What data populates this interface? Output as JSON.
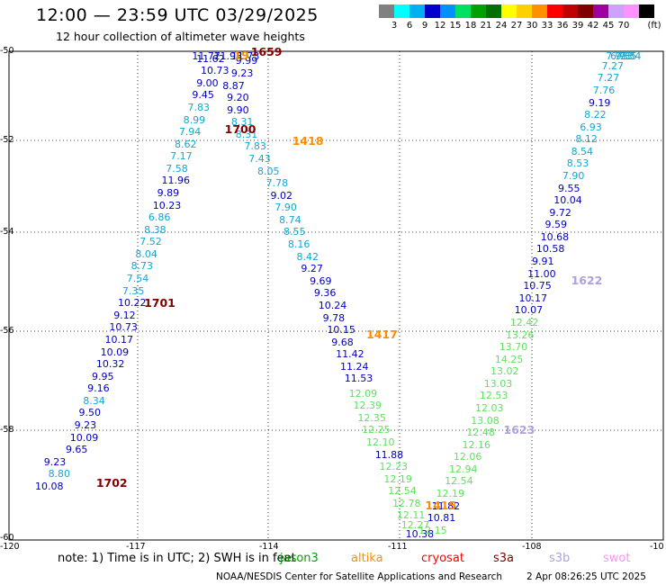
{
  "header": {
    "title": "12:00 — 23:59 UTC 03/29/2025",
    "subtitle": "12 hour collection of altimeter wave heights"
  },
  "legend": {
    "unit": "(ft)",
    "bins": [
      {
        "color": "#808080",
        "label": ""
      },
      {
        "color": "#00ffff",
        "label": "3"
      },
      {
        "color": "#00b0f0",
        "label": "6"
      },
      {
        "color": "#0000cd",
        "label": "9"
      },
      {
        "color": "#0090ff",
        "label": "12"
      },
      {
        "color": "#00e060",
        "label": "15"
      },
      {
        "color": "#00a000",
        "label": "18"
      },
      {
        "color": "#007000",
        "label": "21"
      },
      {
        "color": "#ffff00",
        "label": "24"
      },
      {
        "color": "#ffd000",
        "label": "27"
      },
      {
        "color": "#ff9000",
        "label": "30"
      },
      {
        "color": "#ff0000",
        "label": "33"
      },
      {
        "color": "#c00000",
        "label": "36"
      },
      {
        "color": "#800000",
        "label": "39"
      },
      {
        "color": "#a000a0",
        "label": "42"
      },
      {
        "color": "#d0a0ff",
        "label": "45"
      },
      {
        "color": "#ff90ff",
        "label": "70"
      },
      {
        "color": "#000000",
        "label": ""
      }
    ]
  },
  "axes": {
    "lon_ticks": [
      "-120",
      "-117",
      "-114",
      "-111",
      "-108",
      "-10"
    ],
    "lat_ticks": [
      "-50",
      "-52",
      "-54",
      "-56",
      "-58",
      "-60"
    ]
  },
  "colors": {
    "blue": "#0000c0",
    "cyan": "#10a8d0",
    "green": "#60e060",
    "maroon": "#800000",
    "orange": "#ff8c00",
    "lavender": "#b0a0e0"
  },
  "track_labels": [
    {
      "lon": -119.4,
      "lat": -58.8,
      "text": "10.08",
      "c": "blue"
    },
    {
      "lon": -119.1,
      "lat": -58.55,
      "text": "8.80",
      "c": "cyan"
    },
    {
      "lon": -119.2,
      "lat": -58.3,
      "text": "9.23",
      "c": "blue"
    },
    {
      "lon": -118.7,
      "lat": -58.05,
      "text": "9.65",
      "c": "blue"
    },
    {
      "lon": -118.6,
      "lat": -57.8,
      "text": "10.09",
      "c": "blue"
    },
    {
      "lon": -118.5,
      "lat": -57.55,
      "text": "9.23",
      "c": "blue"
    },
    {
      "lon": -118.4,
      "lat": -57.3,
      "text": "9.50",
      "c": "blue"
    },
    {
      "lon": -118.3,
      "lat": -57.05,
      "text": "8.34",
      "c": "cyan"
    },
    {
      "lon": -118.2,
      "lat": -56.8,
      "text": "9.16",
      "c": "blue"
    },
    {
      "lon": -118.1,
      "lat": -56.55,
      "text": "9.95",
      "c": "blue"
    },
    {
      "lon": -118.0,
      "lat": -56.3,
      "text": "10.32",
      "c": "blue"
    },
    {
      "lon": -117.9,
      "lat": -56.05,
      "text": "10.09",
      "c": "blue"
    },
    {
      "lon": -117.8,
      "lat": -55.8,
      "text": "10.17",
      "c": "blue"
    },
    {
      "lon": -117.7,
      "lat": -55.55,
      "text": "10.73",
      "c": "blue"
    },
    {
      "lon": -117.6,
      "lat": -55.3,
      "text": "9.12",
      "c": "blue"
    },
    {
      "lon": -117.5,
      "lat": -55.05,
      "text": "10.22",
      "c": "blue"
    },
    {
      "lon": -117.4,
      "lat": -54.8,
      "text": "7.35",
      "c": "cyan"
    },
    {
      "lon": -117.3,
      "lat": -54.55,
      "text": "7.54",
      "c": "cyan"
    },
    {
      "lon": -117.2,
      "lat": -54.3,
      "text": "8.73",
      "c": "cyan"
    },
    {
      "lon": -117.1,
      "lat": -54.05,
      "text": "8.04",
      "c": "cyan"
    },
    {
      "lon": -117.0,
      "lat": -53.8,
      "text": "7.52",
      "c": "cyan"
    },
    {
      "lon": -116.9,
      "lat": -53.55,
      "text": "8.38",
      "c": "cyan"
    },
    {
      "lon": -116.8,
      "lat": -53.3,
      "text": "6.86",
      "c": "cyan"
    },
    {
      "lon": -116.7,
      "lat": -53.05,
      "text": "10.23",
      "c": "blue"
    },
    {
      "lon": -116.6,
      "lat": -52.8,
      "text": "9.89",
      "c": "blue"
    },
    {
      "lon": -116.5,
      "lat": -52.55,
      "text": "11.96",
      "c": "blue"
    },
    {
      "lon": -116.4,
      "lat": -52.3,
      "text": "7.58",
      "c": "cyan"
    },
    {
      "lon": -116.3,
      "lat": -52.05,
      "text": "7.17",
      "c": "cyan"
    },
    {
      "lon": -116.2,
      "lat": -51.8,
      "text": "8.62",
      "c": "cyan"
    },
    {
      "lon": -116.1,
      "lat": -51.55,
      "text": "7.94",
      "c": "cyan"
    },
    {
      "lon": -116.0,
      "lat": -51.3,
      "text": "8.99",
      "c": "cyan"
    },
    {
      "lon": -115.9,
      "lat": -51.05,
      "text": "7.83",
      "c": "cyan"
    },
    {
      "lon": -115.8,
      "lat": -50.8,
      "text": "9.45",
      "c": "blue"
    },
    {
      "lon": -115.7,
      "lat": -50.55,
      "text": "9.00",
      "c": "blue"
    },
    {
      "lon": -115.6,
      "lat": -50.3,
      "text": "10.73",
      "c": "blue"
    },
    {
      "lon": -115.7,
      "lat": -50.05,
      "text": "11.62",
      "c": "blue"
    },
    {
      "lon": -115.8,
      "lat": -49.8,
      "text": "11.77",
      "c": "blue"
    },
    {
      "lon": -115.3,
      "lat": -49.6,
      "text": "11.98",
      "c": "blue"
    },
    {
      "lon": -114.9,
      "lat": -49.85,
      "text": "11.73",
      "c": "blue"
    },
    {
      "lon": -114.8,
      "lat": -50.1,
      "text": "9.99",
      "c": "blue"
    },
    {
      "lon": -114.9,
      "lat": -50.35,
      "text": "9.23",
      "c": "blue"
    },
    {
      "lon": -115.1,
      "lat": -50.6,
      "text": "8.87",
      "c": "blue"
    },
    {
      "lon": -115.0,
      "lat": -50.85,
      "text": "9.20",
      "c": "blue"
    },
    {
      "lon": -115.0,
      "lat": -51.1,
      "text": "9.90",
      "c": "blue"
    },
    {
      "lon": -114.9,
      "lat": -51.35,
      "text": "8.31",
      "c": "cyan"
    },
    {
      "lon": -114.8,
      "lat": -51.6,
      "text": "8.31",
      "c": "cyan"
    },
    {
      "lon": -114.6,
      "lat": -51.85,
      "text": "7.83",
      "c": "cyan"
    },
    {
      "lon": -114.5,
      "lat": -52.1,
      "text": "7.43",
      "c": "cyan"
    },
    {
      "lon": -114.3,
      "lat": -52.35,
      "text": "8.05",
      "c": "cyan"
    },
    {
      "lon": -114.1,
      "lat": -52.6,
      "text": "7.78",
      "c": "cyan"
    },
    {
      "lon": -114.0,
      "lat": -52.85,
      "text": "9.02",
      "c": "blue"
    },
    {
      "lon": -113.9,
      "lat": -53.1,
      "text": "7.90",
      "c": "cyan"
    },
    {
      "lon": -113.8,
      "lat": -53.35,
      "text": "8.74",
      "c": "cyan"
    },
    {
      "lon": -113.7,
      "lat": -53.6,
      "text": "8.55",
      "c": "cyan"
    },
    {
      "lon": -113.6,
      "lat": -53.85,
      "text": "8.16",
      "c": "cyan"
    },
    {
      "lon": -113.4,
      "lat": -54.1,
      "text": "8.42",
      "c": "cyan"
    },
    {
      "lon": -113.3,
      "lat": -54.35,
      "text": "9.27",
      "c": "blue"
    },
    {
      "lon": -113.1,
      "lat": -54.6,
      "text": "9.69",
      "c": "blue"
    },
    {
      "lon": -113.0,
      "lat": -54.85,
      "text": "9.36",
      "c": "blue"
    },
    {
      "lon": -112.9,
      "lat": -55.1,
      "text": "10.24",
      "c": "blue"
    },
    {
      "lon": -112.8,
      "lat": -55.35,
      "text": "9.78",
      "c": "blue"
    },
    {
      "lon": -112.7,
      "lat": -55.6,
      "text": "10.15",
      "c": "blue"
    },
    {
      "lon": -112.6,
      "lat": -55.85,
      "text": "9.68",
      "c": "blue"
    },
    {
      "lon": -112.5,
      "lat": -56.1,
      "text": "11.42",
      "c": "blue"
    },
    {
      "lon": -112.4,
      "lat": -56.35,
      "text": "11.24",
      "c": "blue"
    },
    {
      "lon": -112.3,
      "lat": -56.6,
      "text": "11.53",
      "c": "blue"
    },
    {
      "lon": -112.2,
      "lat": -56.9,
      "text": "12.09",
      "c": "green"
    },
    {
      "lon": -112.1,
      "lat": -57.15,
      "text": "12.39",
      "c": "green"
    },
    {
      "lon": -112.0,
      "lat": -57.4,
      "text": "12.35",
      "c": "green"
    },
    {
      "lon": -111.9,
      "lat": -57.65,
      "text": "12.25",
      "c": "green"
    },
    {
      "lon": -111.8,
      "lat": -57.9,
      "text": "12.10",
      "c": "green"
    },
    {
      "lon": -111.6,
      "lat": -58.15,
      "text": "11.88",
      "c": "blue"
    },
    {
      "lon": -111.5,
      "lat": -58.4,
      "text": "12.23",
      "c": "green"
    },
    {
      "lon": -111.4,
      "lat": -58.65,
      "text": "12.19",
      "c": "green"
    },
    {
      "lon": -111.3,
      "lat": -58.9,
      "text": "12.54",
      "c": "green"
    },
    {
      "lon": -111.2,
      "lat": -59.15,
      "text": "12.78",
      "c": "green"
    },
    {
      "lon": -111.1,
      "lat": -59.4,
      "text": "12.11",
      "c": "green"
    },
    {
      "lon": -111.0,
      "lat": -59.6,
      "text": "12.27",
      "c": "green"
    },
    {
      "lon": -110.9,
      "lat": -59.85,
      "text": "10.38",
      "c": "blue"
    },
    {
      "lon": -110.6,
      "lat": -59.7,
      "text": "12.15",
      "c": "green"
    },
    {
      "lon": -110.4,
      "lat": -59.45,
      "text": "10.81",
      "c": "blue"
    },
    {
      "lon": -110.3,
      "lat": -59.2,
      "text": "11.82",
      "c": "blue"
    },
    {
      "lon": -110.2,
      "lat": -58.95,
      "text": "12.19",
      "c": "green"
    },
    {
      "lon": -110.0,
      "lat": -58.7,
      "text": "12.54",
      "c": "green"
    },
    {
      "lon": -109.9,
      "lat": -58.45,
      "text": "12.94",
      "c": "green"
    },
    {
      "lon": -109.8,
      "lat": -58.2,
      "text": "12.06",
      "c": "green"
    },
    {
      "lon": -109.6,
      "lat": -57.95,
      "text": "12.16",
      "c": "green"
    },
    {
      "lon": -109.5,
      "lat": -57.7,
      "text": "12.48",
      "c": "green"
    },
    {
      "lon": -109.4,
      "lat": -57.45,
      "text": "13.08",
      "c": "green"
    },
    {
      "lon": -109.3,
      "lat": -57.2,
      "text": "12.03",
      "c": "green"
    },
    {
      "lon": -109.2,
      "lat": -56.95,
      "text": "12.53",
      "c": "green"
    },
    {
      "lon": -109.1,
      "lat": -56.7,
      "text": "13.03",
      "c": "green"
    },
    {
      "lon": -108.95,
      "lat": -56.45,
      "text": "13.02",
      "c": "green"
    },
    {
      "lon": -108.85,
      "lat": -56.2,
      "text": "14.25",
      "c": "green"
    },
    {
      "lon": -108.75,
      "lat": -55.95,
      "text": "13.70",
      "c": "green"
    },
    {
      "lon": -108.6,
      "lat": -55.7,
      "text": "13.26",
      "c": "green"
    },
    {
      "lon": -108.5,
      "lat": -55.45,
      "text": "12.42",
      "c": "green"
    },
    {
      "lon": -108.4,
      "lat": -55.2,
      "text": "10.07",
      "c": "blue"
    },
    {
      "lon": -108.3,
      "lat": -54.95,
      "text": "10.17",
      "c": "blue"
    },
    {
      "lon": -108.2,
      "lat": -54.7,
      "text": "10.75",
      "c": "blue"
    },
    {
      "lon": -108.1,
      "lat": -54.45,
      "text": "11.00",
      "c": "blue"
    },
    {
      "lon": -108.0,
      "lat": -54.2,
      "text": "9.91",
      "c": "blue"
    },
    {
      "lon": -107.9,
      "lat": -53.95,
      "text": "10.58",
      "c": "blue"
    },
    {
      "lon": -107.8,
      "lat": -53.7,
      "text": "10.68",
      "c": "blue"
    },
    {
      "lon": -107.7,
      "lat": -53.45,
      "text": "9.59",
      "c": "blue"
    },
    {
      "lon": -107.6,
      "lat": -53.2,
      "text": "9.72",
      "c": "blue"
    },
    {
      "lon": -107.5,
      "lat": -52.95,
      "text": "10.04",
      "c": "blue"
    },
    {
      "lon": -107.4,
      "lat": -52.7,
      "text": "9.55",
      "c": "blue"
    },
    {
      "lon": -107.3,
      "lat": -52.45,
      "text": "7.90",
      "c": "cyan"
    },
    {
      "lon": -107.2,
      "lat": -52.2,
      "text": "8.53",
      "c": "cyan"
    },
    {
      "lon": -107.1,
      "lat": -51.95,
      "text": "8.54",
      "c": "cyan"
    },
    {
      "lon": -107.0,
      "lat": -51.7,
      "text": "8.12",
      "c": "cyan"
    },
    {
      "lon": -106.9,
      "lat": -51.45,
      "text": "6.93",
      "c": "cyan"
    },
    {
      "lon": -106.8,
      "lat": -51.2,
      "text": "8.22",
      "c": "cyan"
    },
    {
      "lon": -106.7,
      "lat": -50.95,
      "text": "9.19",
      "c": "blue"
    },
    {
      "lon": -106.6,
      "lat": -50.7,
      "text": "7.76",
      "c": "cyan"
    },
    {
      "lon": -106.5,
      "lat": -50.45,
      "text": "7.27",
      "c": "cyan"
    },
    {
      "lon": -106.4,
      "lat": -50.2,
      "text": "7.27",
      "c": "cyan"
    },
    {
      "lon": -106.3,
      "lat": -49.95,
      "text": "7.93",
      "c": "cyan"
    },
    {
      "lon": -106.2,
      "lat": -49.7,
      "text": "6.93",
      "c": "cyan"
    },
    {
      "lon": -106.1,
      "lat": -49.45,
      "text": "7.35",
      "c": "cyan"
    },
    {
      "lon": -106.0,
      "lat": -49.2,
      "text": "7.34",
      "c": "cyan"
    }
  ],
  "time_labels": [
    {
      "lon": -118.0,
      "lat": -58.7,
      "text": "1702",
      "c": "maroon"
    },
    {
      "lon": -116.9,
      "lat": -55.0,
      "text": "1701",
      "c": "maroon"
    },
    {
      "lon": -115.05,
      "lat": -51.45,
      "text": "1700",
      "c": "maroon"
    },
    {
      "lon": -114.45,
      "lat": -49.85,
      "text": "1659",
      "c": "maroon"
    },
    {
      "lon": -114.85,
      "lat": -49.95,
      "text": "19",
      "c": "orange"
    },
    {
      "lon": -113.5,
      "lat": -51.7,
      "text": "1418",
      "c": "orange"
    },
    {
      "lon": -111.8,
      "lat": -55.65,
      "text": "1417",
      "c": "orange"
    },
    {
      "lon": -110.45,
      "lat": -59.15,
      "text": "1415",
      "c": "orange"
    },
    {
      "lon": -107.1,
      "lat": -54.55,
      "text": "1622",
      "c": "lavender"
    },
    {
      "lon": -108.65,
      "lat": -57.6,
      "text": "1623",
      "c": "lavender"
    }
  ],
  "footer": {
    "note": "note:  1) Time is in UTC;  2) SWH is in feet",
    "missions": [
      {
        "text": "jason3",
        "color": "#00a000"
      },
      {
        "text": "altika",
        "color": "#ff8c00"
      },
      {
        "text": "cryosat",
        "color": "#ff0000"
      },
      {
        "text": "s3a",
        "color": "#800000"
      },
      {
        "text": "s3b",
        "color": "#b0a0e0"
      },
      {
        "text": "swot",
        "color": "#ff90ff"
      }
    ],
    "credit": "NOAA/NESDIS Center for Satellite Applications and Research",
    "timestamp": "2 Apr 08:26:25 UTC 2025"
  }
}
